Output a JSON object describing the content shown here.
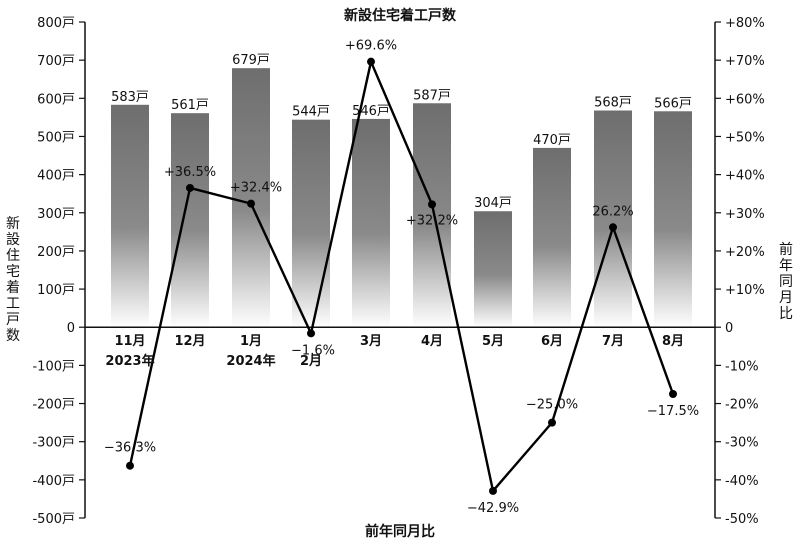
{
  "chart_data": {
    "type": "bar+line",
    "title": "新設住宅着工戸数",
    "xlabel": "前年同月比",
    "ylabel_left": "新設住宅着工戸数",
    "ylabel_right": "前年同月比",
    "categories": [
      "11月",
      "12月",
      "1月",
      "2月",
      "3月",
      "4月",
      "5月",
      "6月",
      "7月",
      "8月"
    ],
    "category_years": [
      "2023年",
      "",
      "2024年",
      "",
      "",
      "",
      "",
      "",
      "",
      ""
    ],
    "series": [
      {
        "kind": "bar",
        "axis": "left",
        "unit": "戸",
        "values": [
          583,
          561,
          679,
          544,
          546,
          587,
          304,
          470,
          568,
          566
        ],
        "labels": [
          "583戸",
          "561戸",
          "679戸",
          "544戸",
          "546戸",
          "587戸",
          "304戸",
          "470戸",
          "568戸",
          "566戸"
        ]
      },
      {
        "kind": "line",
        "axis": "right",
        "unit": "%",
        "values": [
          -36.3,
          36.5,
          32.4,
          -1.6,
          69.6,
          32.2,
          -42.9,
          -25.0,
          26.2,
          -17.5
        ],
        "labels": [
          "−36.3%",
          "+36.5%",
          "+32.4%",
          "−1.6%",
          "+69.6%",
          "+32.2%",
          "−42.9%",
          "−25.0%",
          "26.2%",
          "−17.5%"
        ]
      }
    ],
    "y_left": {
      "min": -500,
      "max": 800,
      "ticks": [
        800,
        700,
        600,
        500,
        400,
        300,
        200,
        100,
        0,
        -100,
        -200,
        -300,
        -400,
        -500
      ],
      "tick_labels": [
        "800戸",
        "700戸",
        "600戸",
        "500戸",
        "400戸",
        "300戸",
        "200戸",
        "100戸",
        "0",
        "-100戸",
        "-200戸",
        "-300戸",
        "-400戸",
        "-500戸"
      ]
    },
    "y_right": {
      "min": -50,
      "max": 80,
      "ticks": [
        80,
        70,
        60,
        50,
        40,
        30,
        20,
        10,
        0,
        -10,
        -20,
        -30,
        -40,
        -50
      ],
      "tick_labels": [
        "+80%",
        "+70%",
        "+60%",
        "+50%",
        "+40%",
        "+30%",
        "+20%",
        "+10%",
        "0",
        "-10%",
        "-20%",
        "-30%",
        "-40%",
        "-50%"
      ]
    },
    "grid": false,
    "legend": "none",
    "colors": {
      "bar_top": "#6e6e6e",
      "bar_bottom": "#ffffff",
      "line": "#000000",
      "marker": "#000000"
    }
  }
}
